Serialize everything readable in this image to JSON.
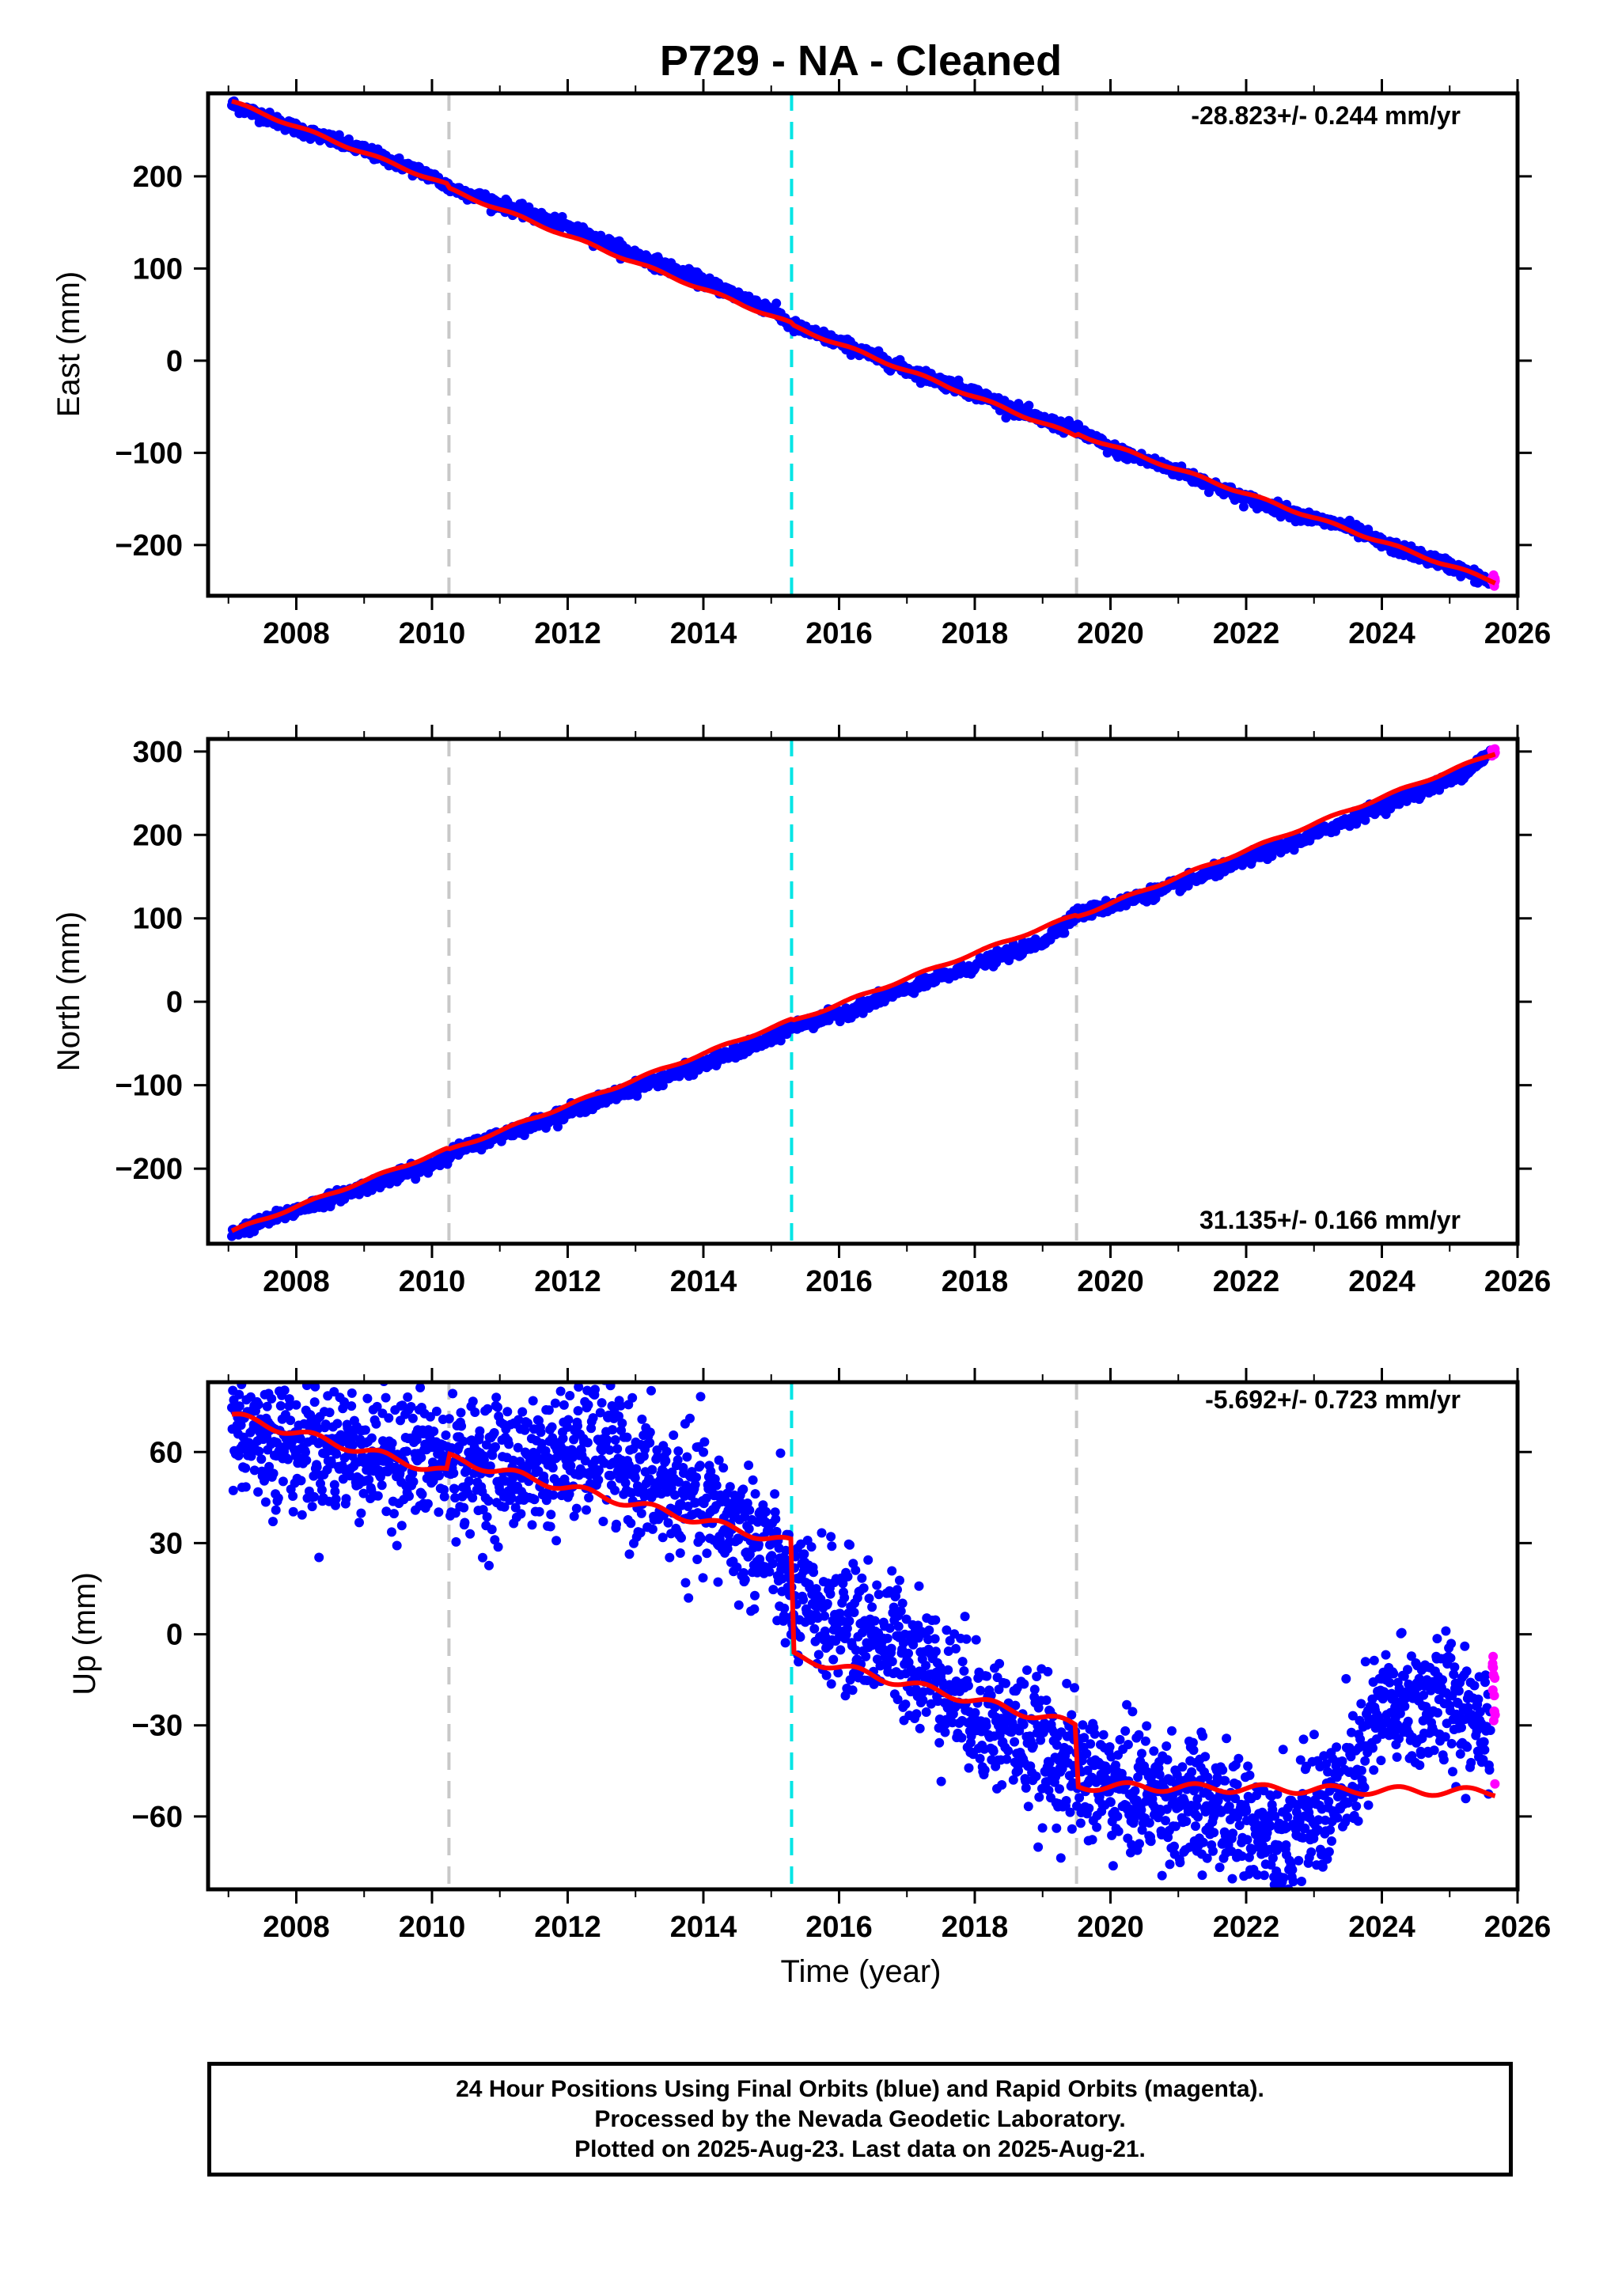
{
  "title": "P729  - NA - Cleaned",
  "xlabel": "Time (year)",
  "footer": {
    "line1": "24 Hour Positions Using Final Orbits (blue) and Rapid Orbits (magenta).",
    "line2": "Processed by the Nevada Geodetic Laboratory.",
    "line3": "Plotted on 2025-Aug-23. Last data on 2025-Aug-21."
  },
  "colors": {
    "final_orbits": "#0000ff",
    "rapid_orbits": "#ff00ff",
    "model": "#ff0000",
    "event_gray": "#c8c8c8",
    "event_cyan": "#00e5e5"
  },
  "chart_data": [
    {
      "type": "scatter",
      "panel": "east",
      "ylabel": "East (mm)",
      "rate": "-28.823+/- 0.244 mm/yr",
      "xlim": [
        2006.7,
        2026.0
      ],
      "ylim": [
        -255,
        290
      ],
      "xticks": [
        2008,
        2010,
        2012,
        2014,
        2016,
        2018,
        2020,
        2022,
        2024,
        2026
      ],
      "yticks": [
        -200,
        -100,
        0,
        100,
        200
      ],
      "ytick_labels": [
        "−200",
        "−100",
        "0",
        "100",
        "200"
      ],
      "event_lines": [
        {
          "x": 2010.25,
          "color": "gray"
        },
        {
          "x": 2015.3,
          "color": "cyan"
        },
        {
          "x": 2019.5,
          "color": "gray"
        }
      ],
      "series": [
        {
          "name": "Final Orbits",
          "color": "blue",
          "x": [
            2007.05,
            2008.0,
            2009.0,
            2010.0,
            2010.25,
            2011.0,
            2012.0,
            2013.0,
            2014.0,
            2015.0,
            2015.3,
            2016.0,
            2017.0,
            2018.0,
            2019.0,
            2019.5,
            2020.0,
            2021.0,
            2022.0,
            2023.0,
            2023.5,
            2024.0,
            2025.0,
            2025.6
          ],
          "y": [
            278,
            252,
            228,
            200,
            188,
            170,
            145,
            115,
            86,
            56,
            38,
            20,
            -10,
            -35,
            -65,
            -75,
            -95,
            -120,
            -150,
            -172,
            -180,
            -198,
            -222,
            -240
          ]
        },
        {
          "name": "Rapid Orbits",
          "color": "magenta",
          "x": [
            2025.62,
            2025.67
          ],
          "y": [
            -238,
            -241
          ]
        }
      ],
      "model": {
        "x": [
          2007.05,
          2010.25,
          2010.25,
          2015.3,
          2015.3,
          2019.5,
          2019.5,
          2025.67
        ],
        "y": [
          281,
          190,
          186,
          40,
          38,
          -82,
          -79,
          -240
        ]
      }
    },
    {
      "type": "scatter",
      "panel": "north",
      "ylabel": "North (mm)",
      "rate": "31.135+/- 0.166 mm/yr",
      "xlim": [
        2006.7,
        2026.0
      ],
      "ylim": [
        -290,
        315
      ],
      "xticks": [
        2008,
        2010,
        2012,
        2014,
        2016,
        2018,
        2020,
        2022,
        2024,
        2026
      ],
      "yticks": [
        -200,
        -100,
        0,
        100,
        200,
        300
      ],
      "ytick_labels": [
        "−200",
        "−100",
        "0",
        "100",
        "200",
        "300"
      ],
      "event_lines": [
        {
          "x": 2010.25,
          "color": "gray"
        },
        {
          "x": 2015.3,
          "color": "cyan"
        },
        {
          "x": 2019.5,
          "color": "gray"
        }
      ],
      "series": [
        {
          "name": "Final Orbits",
          "color": "blue",
          "x": [
            2007.05,
            2008.0,
            2009.0,
            2010.0,
            2010.25,
            2011.0,
            2012.0,
            2013.0,
            2014.0,
            2015.0,
            2015.3,
            2016.0,
            2017.0,
            2018.0,
            2019.0,
            2019.5,
            2020.0,
            2021.0,
            2022.0,
            2023.0,
            2024.0,
            2025.0,
            2025.6
          ],
          "y": [
            -277,
            -250,
            -222,
            -195,
            -182,
            -160,
            -132,
            -103,
            -75,
            -45,
            -30,
            -15,
            15,
            43,
            72,
            105,
            115,
            140,
            170,
            200,
            235,
            265,
            297
          ]
        },
        {
          "name": "Rapid Orbits",
          "color": "magenta",
          "x": [
            2025.62,
            2025.67
          ],
          "y": [
            298,
            301
          ]
        }
      ],
      "model": {
        "x": [
          2007.05,
          2010.25,
          2010.25,
          2015.3,
          2015.3,
          2019.5,
          2019.5,
          2025.67
        ],
        "y": [
          -275,
          -176,
          -178,
          -22,
          -24,
          104,
          102,
          298
        ]
      }
    },
    {
      "type": "scatter",
      "panel": "up",
      "ylabel": "Up (mm)",
      "rate": "-5.692+/- 0.723 mm/yr",
      "xlim": [
        2006.7,
        2026.0
      ],
      "ylim": [
        -84,
        83
      ],
      "xticks": [
        2008,
        2010,
        2012,
        2014,
        2016,
        2018,
        2020,
        2022,
        2024,
        2026
      ],
      "yticks": [
        -60,
        -30,
        0,
        30,
        60
      ],
      "ytick_labels": [
        "−60",
        "−30",
        "0",
        "30",
        "60"
      ],
      "event_lines": [
        {
          "x": 2010.25,
          "color": "gray"
        },
        {
          "x": 2015.3,
          "color": "cyan"
        },
        {
          "x": 2019.5,
          "color": "gray"
        }
      ],
      "series": [
        {
          "name": "Final Orbits",
          "color": "blue",
          "x": [
            2007.05,
            2008.0,
            2009.0,
            2010.0,
            2011.0,
            2012.0,
            2012.5,
            2013.0,
            2014.0,
            2015.0,
            2015.3,
            2016.0,
            2017.0,
            2018.0,
            2019.0,
            2019.5,
            2020.0,
            2021.0,
            2022.0,
            2022.6,
            2023.0,
            2023.5,
            2023.8,
            2024.0,
            2025.0,
            2025.6
          ],
          "y": [
            68,
            63,
            60,
            57,
            55,
            58,
            62,
            52,
            42,
            28,
            12,
            5,
            -5,
            -25,
            -38,
            -45,
            -50,
            -55,
            -62,
            -68,
            -60,
            -50,
            -35,
            -25,
            -22,
            -28
          ]
        },
        {
          "name": "Rapid Orbits",
          "color": "magenta",
          "x": [
            2025.63,
            2025.65,
            2025.66,
            2025.67
          ],
          "y": [
            -10,
            -18,
            -25,
            -30
          ]
        }
      ],
      "model": {
        "x": [
          2007.05,
          2010.25,
          2010.25,
          2015.3,
          2015.3,
          2019.5,
          2019.5,
          2025.67
        ],
        "y": [
          72,
          53,
          58,
          30,
          -7,
          -30,
          -50,
          -52
        ]
      }
    }
  ]
}
